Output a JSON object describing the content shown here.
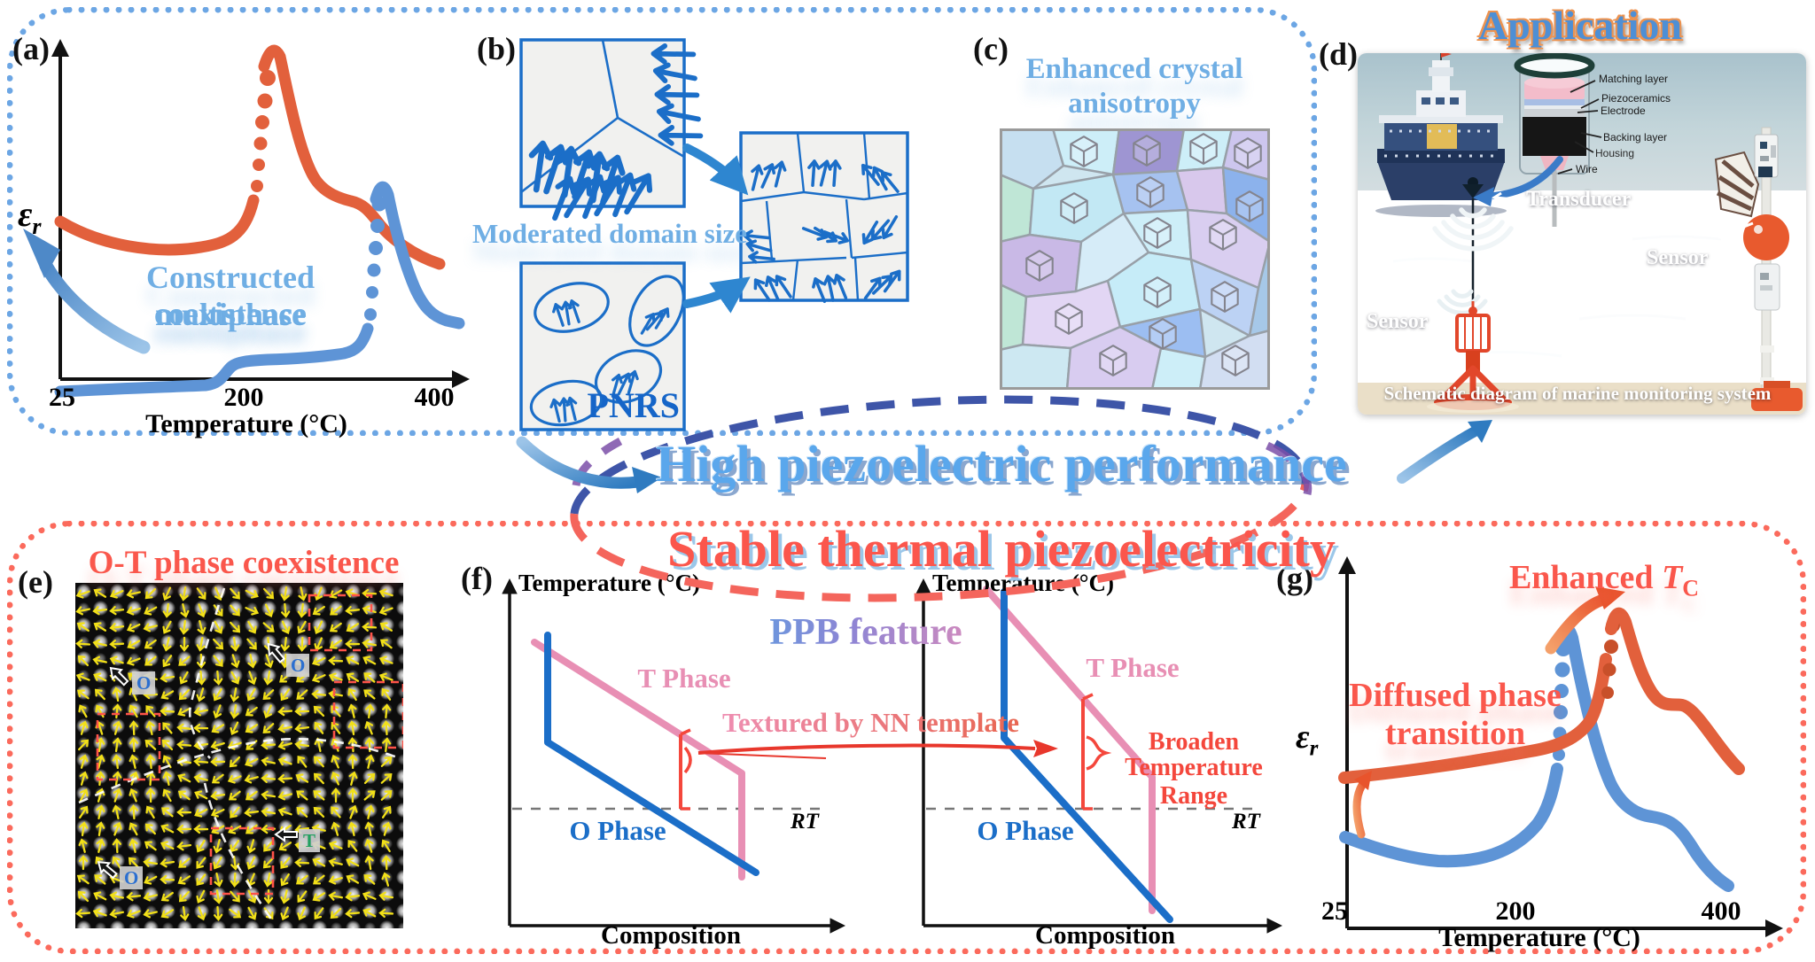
{
  "colors": {
    "orange_curve": "#E2603C",
    "blue_curve": "#5E94D6",
    "diagram_blue": "#1B6EC8",
    "pink_phase": "#E88FB4",
    "red_accent": "#FA574C",
    "light_blue_text": "#6FAEE4",
    "border_blue": "#6CA6E4",
    "border_red": "#FB6A5C",
    "yellow_vectors": "#F2E018"
  },
  "banner": {
    "line1": "High piezoelectric performance",
    "line2": "Stable thermal piezoelectricity"
  },
  "panels": {
    "a": {
      "tag": "(a)",
      "ylabel_base": "ε",
      "ylabel_sub": "r",
      "xlabel": "Temperature (°C)",
      "xtick1": "25",
      "xtick2": "200",
      "xtick3": "400",
      "note1": "Constructed multiphase",
      "note2": "coexistence"
    },
    "b": {
      "tag": "(b)",
      "title": "Moderated domain size",
      "pnrs": "PNRS"
    },
    "c": {
      "tag": "(c)",
      "title1": "Enhanced crystal",
      "title2": "anisotropy"
    },
    "d": {
      "tag": "(d)",
      "title": "Application",
      "layer1": "Matching layer",
      "layer2": "Piezoceramics",
      "layer3": "Electrode",
      "layer4": "Backing layer",
      "layer5": "Housing",
      "layer6": "Wire",
      "transducer": "Transducer",
      "sensor_right": "Sensor",
      "sensor_left": "Sensor",
      "caption": "Schematic diagram of marine monitoring system"
    },
    "e": {
      "tag": "(e)",
      "title": "O-T phase coexistence",
      "marker1": "O",
      "marker2": "O",
      "marker3": "T",
      "marker4": "O"
    },
    "f": {
      "tag": "(f)",
      "ylabel": "Temperature (°C)",
      "xlabel": "Composition",
      "t_phase": "T Phase",
      "o_phase": "O Phase",
      "rt": "RT",
      "ppb": "PPB feature",
      "textured": "Textured by NN template",
      "broaden1": "Broaden",
      "broaden2": "Temperature Range"
    },
    "g": {
      "tag": "(g)",
      "enhanced": "Enhanced",
      "tc_base": "T",
      "tc_sub": "C",
      "diff1": "Diffused phase",
      "diff2": "transition",
      "ylabel_base": "ε",
      "ylabel_sub": "r",
      "xlabel": "Temperature (°C)",
      "xtick1": "25",
      "xtick2": "200",
      "xtick3": "400"
    }
  },
  "chart_data": [
    {
      "panel": "a",
      "type": "line",
      "xlabel": "Temperature (°C)",
      "ylabel": "εr",
      "xticks": [
        25,
        200,
        400
      ],
      "grid": false,
      "legend": "none",
      "series": [
        {
          "name": "orange curve",
          "peak_temperature_c": 230,
          "description": "high permittivity, sharp peak near 230 °C, shoulder near 360 °C, dotted rising edge"
        },
        {
          "name": "blue curve",
          "peak_temperature_c": 345,
          "description": "low flat permittivity, small step near 180 °C, sharp peak near 345 °C, dotted rising edge"
        }
      ],
      "annotation": "Constructed multiphase coexistence"
    },
    {
      "panel": "f-left",
      "type": "line",
      "xlabel": "Composition",
      "ylabel": "Temperature (°C)",
      "series": [
        {
          "name": "T Phase boundary"
        },
        {
          "name": "O Phase boundary"
        }
      ],
      "annotations": [
        "RT reference dashed line",
        "narrow O-T coexistence range marked in red"
      ]
    },
    {
      "panel": "f-right",
      "type": "line",
      "xlabel": "Composition",
      "ylabel": "Temperature (°C)",
      "series": [
        {
          "name": "T Phase boundary"
        },
        {
          "name": "O Phase boundary"
        }
      ],
      "annotations": [
        "RT reference dashed line",
        "Broaden Temperature Range marked with red brace"
      ]
    },
    {
      "panel": "g",
      "type": "line",
      "xlabel": "Temperature (°C)",
      "ylabel": "εr",
      "xticks": [
        25,
        200,
        400
      ],
      "grid": false,
      "legend": "none",
      "series": [
        {
          "name": "blue curve",
          "peak_temperature_c": 250,
          "description": "sharp peak near 250 °C with shoulder near 350 °C"
        },
        {
          "name": "orange curve",
          "peak_temperature_c": 300,
          "description": "diffused broad peak near 300 °C, enhanced TC, raised baseline"
        }
      ]
    }
  ]
}
